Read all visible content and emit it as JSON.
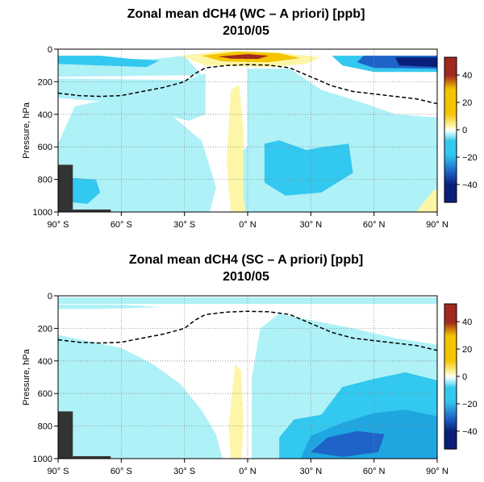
{
  "colors": {
    "strong_negative": "#0a1f7a",
    "negative": "#1e64c8",
    "mild_negative": "#33c8ef",
    "weak_negative": "#aef1f7",
    "near_zero": "#ffffff",
    "weak_positive": "#fdf6a8",
    "positive": "#f5c400",
    "strong_positive": "#a0281e",
    "topography": "#333333",
    "tropopause_line": "#000000",
    "grid": "#888888"
  },
  "chart_data": [
    {
      "type": "heatmap",
      "title": "Zonal mean dCH4 (WC – A priori) [ppb]",
      "subtitle": "2010/05",
      "ylabel": "Pressure, hPa",
      "xlabel": "",
      "x_ticks": [
        -90,
        -60,
        -30,
        0,
        30,
        60,
        90
      ],
      "x_tick_labels": [
        "90° S",
        "60° S",
        "30° S",
        "0° N",
        "30° N",
        "60° N",
        "90° N"
      ],
      "xlim": [
        -90,
        90
      ],
      "y_ticks": [
        0,
        200,
        400,
        600,
        800,
        1000
      ],
      "y_tick_labels": [
        "0",
        "200",
        "400",
        "600",
        "800",
        "1000"
      ],
      "ylim": [
        1000,
        0
      ],
      "grid": true,
      "colorbar": {
        "range": [
          -53,
          53
        ],
        "ticks": [
          40,
          20,
          0,
          -20,
          -40
        ],
        "tick_labels": [
          "40",
          "20",
          "0",
          "−20",
          "−40"
        ]
      },
      "contour_regions": [
        {
          "level": -5,
          "points": [
            [
              -90,
              1000
            ],
            [
              -90,
              580
            ],
            [
              -82,
              350
            ],
            [
              -70,
              320
            ],
            [
              -45,
              290
            ],
            [
              -30,
              300
            ],
            [
              -35,
              420
            ],
            [
              -22,
              560
            ],
            [
              -18,
              720
            ],
            [
              -15,
              850
            ],
            [
              -18,
              1000
            ]
          ]
        },
        {
          "level": -5,
          "points": [
            [
              -5,
              1000
            ],
            [
              -5,
              640
            ],
            [
              0,
              600
            ],
            [
              0,
              120
            ],
            [
              20,
              120
            ],
            [
              35,
              250
            ],
            [
              55,
              330
            ],
            [
              70,
              400
            ],
            [
              90,
              420
            ],
            [
              90,
              1000
            ]
          ]
        },
        {
          "level": -5,
          "points": [
            [
              -90,
              180
            ],
            [
              -30,
              190
            ],
            [
              -20,
              150
            ],
            [
              -20,
              400
            ],
            [
              -28,
              440
            ],
            [
              -60,
              330
            ],
            [
              -90,
              300
            ]
          ]
        },
        {
          "level": -5,
          "points": [
            [
              -90,
              60
            ],
            [
              -45,
              60
            ],
            [
              -30,
              40
            ],
            [
              -22,
              160
            ],
            [
              -90,
              170
            ]
          ]
        },
        {
          "level": -15,
          "points": [
            [
              -90,
              40
            ],
            [
              -70,
              40
            ],
            [
              -55,
              60
            ],
            [
              -42,
              70
            ],
            [
              -48,
              110
            ],
            [
              -70,
              100
            ],
            [
              -90,
              90
            ]
          ]
        },
        {
          "level": -15,
          "points": [
            [
              40,
              40
            ],
            [
              90,
              40
            ],
            [
              90,
              140
            ],
            [
              60,
              140
            ],
            [
              45,
              100
            ]
          ]
        },
        {
          "level": -15,
          "points": [
            [
              8,
              580
            ],
            [
              15,
              560
            ],
            [
              28,
              620
            ],
            [
              36,
              600
            ],
            [
              48,
              580
            ],
            [
              50,
              760
            ],
            [
              35,
              880
            ],
            [
              18,
              900
            ],
            [
              8,
              820
            ]
          ]
        },
        {
          "level": -15,
          "points": [
            [
              -84,
              790
            ],
            [
              -72,
              800
            ],
            [
              -70,
              880
            ],
            [
              -76,
              950
            ],
            [
              -84,
              940
            ]
          ]
        },
        {
          "level": -30,
          "points": [
            [
              55,
              40
            ],
            [
              90,
              40
            ],
            [
              90,
              120
            ],
            [
              60,
              115
            ],
            [
              52,
              80
            ]
          ]
        },
        {
          "level": -40,
          "points": [
            [
              70,
              50
            ],
            [
              90,
              50
            ],
            [
              90,
              110
            ],
            [
              72,
              100
            ]
          ]
        },
        {
          "level": 5,
          "points": [
            [
              -32,
              40
            ],
            [
              -10,
              10
            ],
            [
              15,
              20
            ],
            [
              35,
              50
            ],
            [
              28,
              90
            ],
            [
              10,
              110
            ],
            [
              -20,
              100
            ]
          ]
        },
        {
          "level": 5,
          "points": [
            [
              -8,
              1000
            ],
            [
              -10,
              700
            ],
            [
              -8,
              250
            ],
            [
              -4,
              220
            ],
            [
              -2,
              500
            ],
            [
              -2,
              900
            ],
            [
              -1,
              1000
            ]
          ]
        },
        {
          "level": 5,
          "points": [
            [
              80,
              1000
            ],
            [
              88,
              870
            ],
            [
              90,
              860
            ],
            [
              90,
              1000
            ]
          ]
        },
        {
          "level": 20,
          "points": [
            [
              -22,
              40
            ],
            [
              -5,
              15
            ],
            [
              15,
              25
            ],
            [
              25,
              55
            ],
            [
              10,
              80
            ],
            [
              -12,
              75
            ]
          ]
        },
        {
          "level": 35,
          "points": [
            [
              -14,
              45
            ],
            [
              0,
              30
            ],
            [
              10,
              40
            ],
            [
              5,
              60
            ],
            [
              -8,
              58
            ]
          ]
        }
      ],
      "tropopause": {
        "lat": [
          -90,
          -80,
          -70,
          -60,
          -50,
          -40,
          -30,
          -25,
          -20,
          -10,
          0,
          10,
          20,
          30,
          40,
          50,
          60,
          70,
          80,
          90
        ],
        "pressure": [
          270,
          285,
          290,
          285,
          260,
          235,
          200,
          150,
          115,
          100,
          95,
          98,
          115,
          170,
          225,
          260,
          275,
          290,
          305,
          335
        ]
      },
      "topography": [
        {
          "lat": [
            -90,
            -83
          ],
          "pressure_top": 710
        },
        {
          "lat": [
            -83,
            -65
          ],
          "pressure_top": 985
        }
      ]
    },
    {
      "type": "heatmap",
      "title": "Zonal mean dCH4 (SC – A priori) [ppb]",
      "subtitle": "2010/05",
      "ylabel": "Pressure, hPa",
      "xlabel": "",
      "x_ticks": [
        -90,
        -60,
        -30,
        0,
        30,
        60,
        90
      ],
      "x_tick_labels": [
        "90° S",
        "60° S",
        "30° S",
        "0° N",
        "30° N",
        "60° N",
        "90° N"
      ],
      "xlim": [
        -90,
        90
      ],
      "y_ticks": [
        0,
        200,
        400,
        600,
        800,
        1000
      ],
      "y_tick_labels": [
        "0",
        "200",
        "400",
        "600",
        "800",
        "1000"
      ],
      "ylim": [
        1000,
        0
      ],
      "grid": true,
      "colorbar": {
        "range": [
          -53,
          53
        ],
        "ticks": [
          40,
          20,
          0,
          -20,
          -40
        ],
        "tick_labels": [
          "40",
          "20",
          "0",
          "−20",
          "−40"
        ]
      },
      "contour_regions": [
        {
          "level": -5,
          "points": [
            [
              -90,
              1000
            ],
            [
              -90,
              240
            ],
            [
              -75,
              280
            ],
            [
              -60,
              320
            ],
            [
              -45,
              420
            ],
            [
              -32,
              540
            ],
            [
              -22,
              700
            ],
            [
              -15,
              850
            ],
            [
              -12,
              1000
            ]
          ]
        },
        {
          "level": -5,
          "points": [
            [
              2,
              1000
            ],
            [
              2,
              500
            ],
            [
              6,
              200
            ],
            [
              15,
              110
            ],
            [
              30,
              150
            ],
            [
              50,
              200
            ],
            [
              70,
              260
            ],
            [
              90,
              300
            ],
            [
              90,
              1000
            ]
          ]
        },
        {
          "level": -5,
          "points": [
            [
              -90,
              10
            ],
            [
              90,
              10
            ],
            [
              90,
              50
            ],
            [
              -90,
              50
            ]
          ]
        },
        {
          "level": -5,
          "points": [
            [
              -90,
              55
            ],
            [
              -60,
              55
            ],
            [
              -40,
              70
            ],
            [
              -70,
              80
            ],
            [
              -90,
              80
            ]
          ]
        },
        {
          "level": -15,
          "points": [
            [
              15,
              1000
            ],
            [
              15,
              870
            ],
            [
              22,
              760
            ],
            [
              35,
              730
            ],
            [
              45,
              560
            ],
            [
              60,
              510
            ],
            [
              75,
              470
            ],
            [
              90,
              520
            ],
            [
              90,
              1000
            ]
          ]
        },
        {
          "level": -22,
          "points": [
            [
              25,
              1000
            ],
            [
              30,
              860
            ],
            [
              45,
              780
            ],
            [
              60,
              720
            ],
            [
              75,
              700
            ],
            [
              90,
              740
            ],
            [
              90,
              1000
            ]
          ]
        },
        {
          "level": -28,
          "points": [
            [
              30,
              960
            ],
            [
              38,
              870
            ],
            [
              52,
              830
            ],
            [
              65,
              850
            ],
            [
              62,
              960
            ],
            [
              45,
              990
            ]
          ]
        },
        {
          "level": 5,
          "points": [
            [
              -8,
              1000
            ],
            [
              -9,
              800
            ],
            [
              -6,
              420
            ],
            [
              -3,
              460
            ],
            [
              -2,
              800
            ],
            [
              -3,
              1000
            ]
          ]
        }
      ],
      "tropopause": {
        "lat": [
          -90,
          -80,
          -70,
          -60,
          -50,
          -40,
          -30,
          -25,
          -20,
          -10,
          0,
          10,
          20,
          30,
          40,
          50,
          60,
          70,
          80,
          90
        ],
        "pressure": [
          270,
          285,
          290,
          285,
          260,
          235,
          200,
          150,
          115,
          100,
          95,
          98,
          115,
          170,
          225,
          260,
          275,
          290,
          305,
          335
        ]
      },
      "topography": [
        {
          "lat": [
            -90,
            -83
          ],
          "pressure_top": 710
        },
        {
          "lat": [
            -83,
            -65
          ],
          "pressure_top": 985
        }
      ]
    }
  ]
}
